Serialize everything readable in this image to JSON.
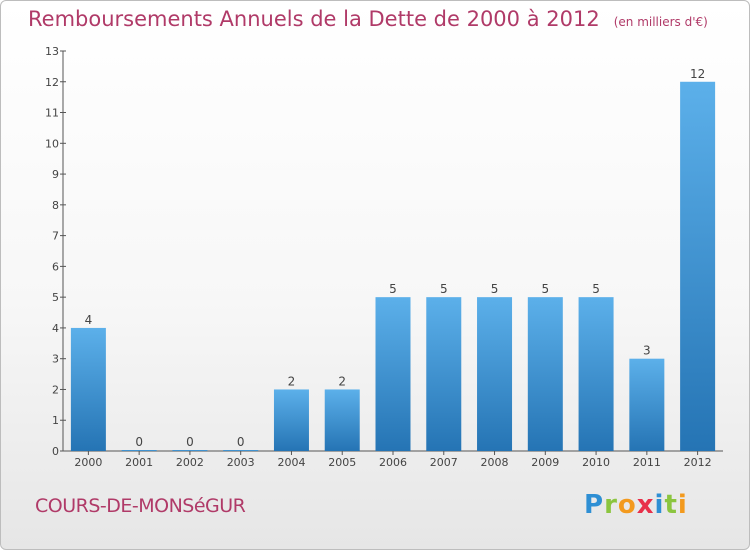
{
  "title": "Remboursements Annuels de la Dette de 2000 à 2012",
  "subtitle": "(en milliers d'€)",
  "commune": "COURS-DE-MONSéGUR",
  "logo": {
    "letters": [
      {
        "char": "P",
        "color": "#2e8fd4"
      },
      {
        "char": "r",
        "color": "#8bc53f"
      },
      {
        "char": "o",
        "color": "#f39a1e"
      },
      {
        "char": "x",
        "color": "#e8304a"
      },
      {
        "char": "i",
        "color": "#2e8fd4"
      },
      {
        "char": "t",
        "color": "#8bc53f"
      },
      {
        "char": "i",
        "color": "#f39a1e"
      }
    ]
  },
  "colors": {
    "accent": "#b03a68",
    "bar_top": "#5cb0ea",
    "bar_bottom": "#2574b4",
    "axis": "#555555"
  },
  "chart_data": {
    "type": "bar",
    "categories": [
      "2000",
      "2001",
      "2002",
      "2003",
      "2004",
      "2005",
      "2006",
      "2007",
      "2008",
      "2009",
      "2010",
      "2011",
      "2012"
    ],
    "values": [
      4,
      0,
      0,
      0,
      2,
      2,
      5,
      5,
      5,
      5,
      5,
      3,
      12
    ],
    "data_labels": [
      "4",
      "0",
      "0",
      "0",
      "2",
      "2",
      "5",
      "5",
      "5",
      "5",
      "5",
      "3",
      "12"
    ],
    "ylim": [
      0,
      13
    ],
    "yticks": [
      "0",
      "1",
      "2",
      "3",
      "4",
      "5",
      "6",
      "7",
      "8",
      "9",
      "10",
      "11",
      "12",
      "13"
    ],
    "title": "Remboursements Annuels de la Dette de 2000 à 2012",
    "subtitle": "(en milliers d'€)",
    "xlabel": "",
    "ylabel": "",
    "grid": false,
    "legend": "none"
  }
}
